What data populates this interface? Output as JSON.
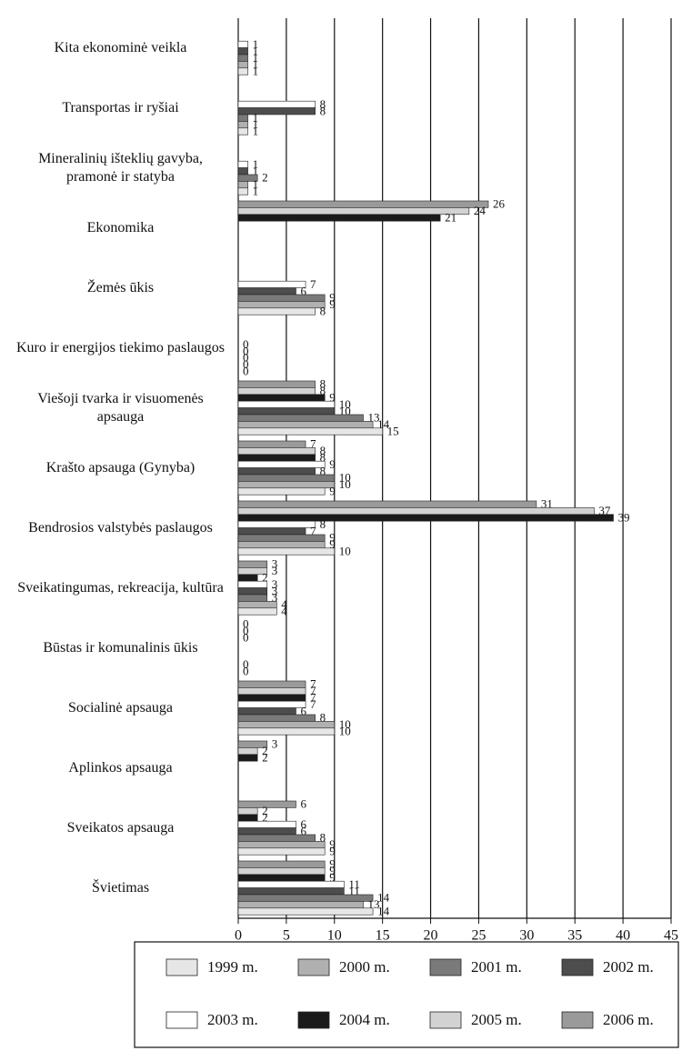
{
  "chart_data": {
    "type": "bar",
    "orientation": "horizontal",
    "categories": [
      "Kita ekonominė veikla",
      "Transportas ir ryšiai",
      "Mineralinių išteklių gavyba, pramonė ir statyba",
      "Ekonomika",
      "Žemės ūkis",
      "Kuro ir energijos tiekimo paslaugos",
      "Viešoji tvarka ir visuomenės apsauga",
      "Krašto apsauga (Gynyba)",
      "Bendrosios valstybės paslaugos",
      "Sveikatingumas, rekreacija, kultūra",
      "Būstas ir komunalinis ūkis",
      "Socialinė apsauga",
      "Aplinkos apsauga",
      "Sveikatos apsauga",
      "Švietimas"
    ],
    "series": [
      {
        "name": "1999 m.",
        "color": "#e6e6e6",
        "values": [
          1,
          1,
          1,
          null,
          8,
          0,
          15,
          9,
          10,
          4,
          0,
          10,
          null,
          9,
          14
        ]
      },
      {
        "name": "2000 m.",
        "color": "#b0b0b0",
        "values": [
          1,
          1,
          1,
          null,
          9,
          0,
          14,
          10,
          9,
          4,
          0,
          10,
          null,
          9,
          13
        ]
      },
      {
        "name": "2001 m.",
        "color": "#7a7a7a",
        "values": [
          1,
          1,
          2,
          null,
          9,
          0,
          13,
          10,
          9,
          3,
          null,
          8,
          null,
          8,
          14
        ]
      },
      {
        "name": "2002 m.",
        "color": "#4d4d4d",
        "values": [
          1,
          8,
          1,
          null,
          6,
          0,
          10,
          8,
          7,
          3,
          null,
          6,
          null,
          6,
          11
        ]
      },
      {
        "name": "2003 m.",
        "color": "#ffffff",
        "values": [
          1,
          8,
          1,
          null,
          7,
          0,
          10,
          9,
          8,
          3,
          null,
          7,
          null,
          6,
          11
        ]
      },
      {
        "name": "2004 m.",
        "color": "#1a1a1a",
        "values": [
          null,
          null,
          null,
          21,
          null,
          null,
          9,
          8,
          39,
          2,
          0,
          7,
          2,
          2,
          9
        ]
      },
      {
        "name": "2005 m.",
        "color": "#d2d2d2",
        "values": [
          null,
          null,
          null,
          24,
          null,
          null,
          8,
          8,
          37,
          3,
          0,
          7,
          2,
          2,
          9
        ]
      },
      {
        "name": "2006 m.",
        "color": "#9a9a9a",
        "values": [
          null,
          null,
          null,
          26,
          null,
          null,
          8,
          7,
          31,
          3,
          0,
          7,
          3,
          6,
          9
        ]
      }
    ],
    "xlim": [
      0,
      45
    ],
    "xticks": [
      0,
      5,
      10,
      15,
      20,
      25,
      30,
      35,
      40,
      45
    ],
    "grid": true
  }
}
